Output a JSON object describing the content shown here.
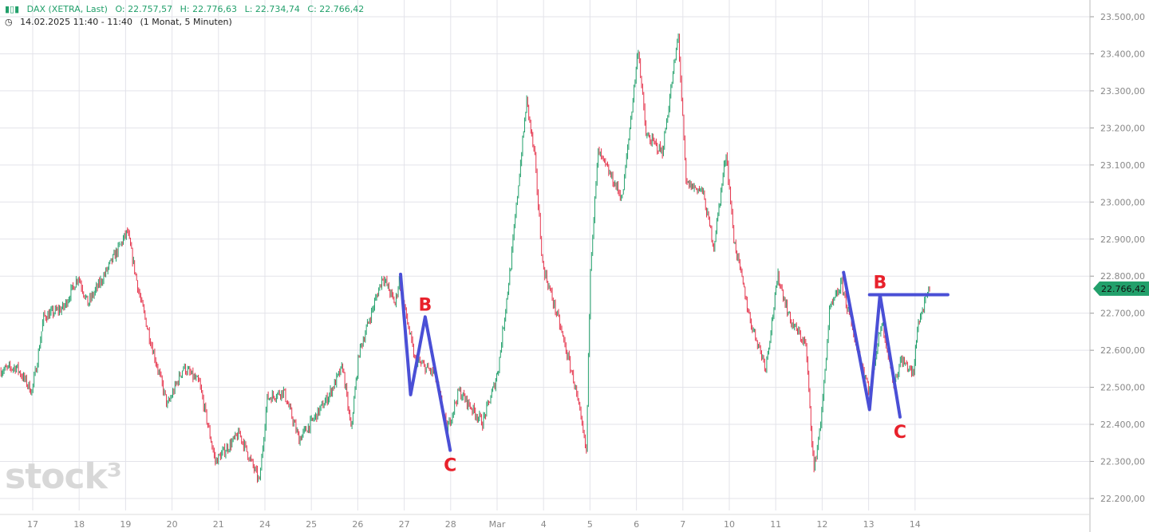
{
  "header": {
    "instrument": "DAX (XETRA, Last)",
    "open": "O: 22.757,57",
    "high": "H: 22.776,63",
    "low": "L: 22.734,74",
    "close": "C: 22.766,42",
    "date_range": "14.02.2025 11:40 - 11:40",
    "period": "(1 Monat, 5 Minuten)",
    "color": "#22a06b"
  },
  "logo": "stock3",
  "chart_data": {
    "type": "candlestick",
    "title": "DAX (XETRA, Last)",
    "up_color": "#22a06b",
    "down_color": "#e5334b",
    "grid": true,
    "ylim": [
      22150,
      23530
    ],
    "y_ticks": [
      "23.500,00",
      "23.400,00",
      "23.300,00",
      "23.200,00",
      "23.100,00",
      "23.000,00",
      "22.900,00",
      "22.800,00",
      "22.700,00",
      "22.600,00",
      "22.500,00",
      "22.400,00",
      "22.300,00",
      "22.200,00"
    ],
    "y_tick_values": [
      23500,
      23400,
      23300,
      23200,
      23100,
      23000,
      22900,
      22800,
      22700,
      22600,
      22500,
      22400,
      22300,
      22200
    ],
    "x_ticks": [
      "17",
      "18",
      "19",
      "20",
      "21",
      "24",
      "25",
      "26",
      "27",
      "28",
      "Mar",
      "4",
      "5",
      "6",
      "7",
      "10",
      "11",
      "12",
      "13",
      "14"
    ],
    "x_tick_dates": [
      "02-17",
      "02-18",
      "02-19",
      "02-20",
      "02-21",
      "02-24",
      "02-25",
      "02-26",
      "02-27",
      "02-28",
      "03-03",
      "03-04",
      "03-05",
      "03-06",
      "03-07",
      "03-10",
      "03-11",
      "03-12",
      "03-13",
      "03-14"
    ],
    "last_price": 22766.42,
    "last_price_label": "22.766,42",
    "last_price_color": "#22a06b",
    "series": [
      [
        "02-14 11:30",
        22545
      ],
      [
        "02-14 14:30",
        22555
      ],
      [
        "02-14 17:20",
        22490
      ],
      [
        "02-17 09:40",
        22555
      ],
      [
        "02-17 11:00",
        22690
      ],
      [
        "02-17 14:40",
        22715
      ],
      [
        "02-17 17:20",
        22800
      ],
      [
        "02-18 10:35",
        22725
      ],
      [
        "02-18 13:30",
        22800
      ],
      [
        "02-19 09:20",
        22920
      ],
      [
        "02-19 11:35",
        22745
      ],
      [
        "02-19 13:45",
        22615
      ],
      [
        "02-19 16:40",
        22450
      ],
      [
        "02-20 11:05",
        22555
      ],
      [
        "02-20 14:00",
        22510
      ],
      [
        "02-20 16:55",
        22300
      ],
      [
        "02-21 12:50",
        22375
      ],
      [
        "02-21 16:30",
        22245
      ],
      [
        "02-24 09:25",
        22470
      ],
      [
        "02-24 12:25",
        22490
      ],
      [
        "02-24 15:15",
        22360
      ],
      [
        "02-25 09:00",
        22405
      ],
      [
        "02-25 11:55",
        22470
      ],
      [
        "02-25 14:45",
        22555
      ],
      [
        "02-25 16:15",
        22385
      ],
      [
        "02-26 09:15",
        22595
      ],
      [
        "02-26 13:35",
        22800
      ],
      [
        "02-26 15:50",
        22725
      ],
      [
        "02-26 16:35",
        22790
      ],
      [
        "02-27 10:55",
        22575
      ],
      [
        "02-27 14:35",
        22535
      ],
      [
        "02-27 16:50",
        22385
      ],
      [
        "02-28 10:30",
        22490
      ],
      [
        "02-28 14:50",
        22405
      ],
      [
        "02-28 17:05",
        22510
      ],
      [
        "03-03 09:15",
        22555
      ],
      [
        "03-03 11:30",
        22830
      ],
      [
        "03-03 12:55",
        23050
      ],
      [
        "03-03 14:25",
        23275
      ],
      [
        "03-03 15:55",
        23115
      ],
      [
        "03-03 17:20",
        22830
      ],
      [
        "03-04 11:45",
        22680
      ],
      [
        "03-04 14:40",
        22510
      ],
      [
        "03-04 16:50",
        22325
      ],
      [
        "03-05 09:05",
        22830
      ],
      [
        "03-05 10:30",
        23135
      ],
      [
        "03-05 14:55",
        23010
      ],
      [
        "03-06 09:20",
        23415
      ],
      [
        "03-06 10:45",
        23180
      ],
      [
        "03-06 13:45",
        23135
      ],
      [
        "03-06 16:40",
        23450
      ],
      [
        "03-07 09:35",
        23050
      ],
      [
        "03-07 12:35",
        23030
      ],
      [
        "03-07 14:40",
        22880
      ],
      [
        "03-07 16:55",
        23135
      ],
      [
        "03-10 09:50",
        22900
      ],
      [
        "03-10 12:50",
        22680
      ],
      [
        "03-10 15:40",
        22555
      ],
      [
        "03-11 09:25",
        22800
      ],
      [
        "03-11 11:40",
        22680
      ],
      [
        "03-11 14:30",
        22615
      ],
      [
        "03-11 16:00",
        22275
      ],
      [
        "03-11 17:25",
        22430
      ],
      [
        "03-12 10:20",
        22705
      ],
      [
        "03-12 12:35",
        22780
      ],
      [
        "03-12 14:45",
        22640
      ],
      [
        "03-13 09:10",
        22490
      ],
      [
        "03-13 11:25",
        22680
      ],
      [
        "03-13 13:35",
        22510
      ],
      [
        "03-13 15:00",
        22575
      ],
      [
        "03-13 17:15",
        22535
      ],
      [
        "03-14 09:25",
        22665
      ],
      [
        "03-14 11:40",
        22766.42
      ]
    ],
    "annotations": {
      "color": "#4a4fd6",
      "label_color": "#e8212b",
      "polylines": [
        [
          [
            "02-26 16:50",
            22805
          ],
          [
            "02-27 10:10",
            22480
          ],
          [
            "02-27 12:50",
            22690
          ],
          [
            "02-27 17:25",
            22330
          ]
        ],
        [
          [
            "03-12 12:55",
            22810
          ],
          [
            "03-13 09:10",
            22440
          ],
          [
            "03-13 11:05",
            22750
          ],
          [
            "03-13 14:45",
            22420
          ]
        ],
        [
          [
            "03-13 09:10",
            22750
          ],
          [
            "03-14 15:00",
            22750
          ]
        ]
      ],
      "labels": [
        {
          "text": "B",
          "t": "02-27 12:50",
          "p": 22690,
          "pos": "above"
        },
        {
          "text": "C",
          "t": "02-27 17:25",
          "p": 22330,
          "pos": "below"
        },
        {
          "text": "B",
          "t": "03-13 11:05",
          "p": 22750,
          "pos": "above"
        },
        {
          "text": "C",
          "t": "03-13 14:45",
          "p": 22420,
          "pos": "below"
        }
      ]
    }
  }
}
